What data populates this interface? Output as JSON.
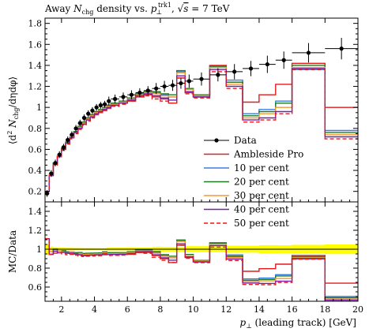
{
  "colors": {
    "data": "#000000",
    "ambleside_pro": "#e41a1c",
    "per_cent_10": "#3a7de0",
    "per_cent_20": "#1e7a1e",
    "per_cent_30": "#f39a36",
    "per_cent_40": "#7a1fa2",
    "per_cent_50": "#e41a1c",
    "band": "#ffff00"
  },
  "chart_data": [
    {
      "type": "line",
      "title": "Away N_chg density vs. p_⊥^trk1, √s = 7 TeV",
      "title_parts": {
        "prefix": "Away ",
        "N": "N",
        "chg": "chg",
        "mid": " density vs. ",
        "p": "p",
        "sub": "⊥",
        "sup": "trk1",
        "sep": ", ",
        "sqrt": "√",
        "s": "s",
        "eq": " = 7 TeV"
      },
      "ylabel": "⟨d²N_chg/dηdφ⟩",
      "ylabel_parts": {
        "open": "⟨d",
        "two": "2",
        "N": " N",
        "chg": "chg",
        "rest": "/dηdφ⟩"
      },
      "xlim": [
        1,
        20
      ],
      "ylim": [
        0.1,
        1.85
      ],
      "y_ticks": [
        0.2,
        0.4,
        0.6,
        0.8,
        1.0,
        1.2,
        1.4,
        1.6,
        1.8
      ],
      "y_tick_labels": [
        "0.2",
        "0.4",
        "0.6",
        "0.8",
        "1",
        "1.2",
        "1.4",
        "1.6",
        "1.8"
      ],
      "bin_edges": [
        1.0,
        1.25,
        1.5,
        1.75,
        2.0,
        2.25,
        2.5,
        2.75,
        3.0,
        3.25,
        3.5,
        3.75,
        4.0,
        4.25,
        4.5,
        4.75,
        5.0,
        5.5,
        6.0,
        6.5,
        7.0,
        7.5,
        8.0,
        8.5,
        9.0,
        9.5,
        10.0,
        11.0,
        12.0,
        13.0,
        14.0,
        15.0,
        16.0,
        18.0,
        20.0
      ],
      "data": {
        "x": [
          1.125,
          1.375,
          1.625,
          1.875,
          2.125,
          2.375,
          2.625,
          2.875,
          3.125,
          3.375,
          3.625,
          3.875,
          4.125,
          4.375,
          4.625,
          4.875,
          5.25,
          5.75,
          6.25,
          6.75,
          7.25,
          7.75,
          8.25,
          8.75,
          9.25,
          9.75,
          10.5,
          11.5,
          12.5,
          13.5,
          14.5,
          15.5,
          17.0,
          19.0
        ],
        "y": [
          0.18,
          0.37,
          0.47,
          0.55,
          0.62,
          0.69,
          0.74,
          0.8,
          0.85,
          0.9,
          0.94,
          0.97,
          1.0,
          1.02,
          1.03,
          1.06,
          1.08,
          1.1,
          1.12,
          1.14,
          1.16,
          1.18,
          1.2,
          1.21,
          1.23,
          1.25,
          1.27,
          1.31,
          1.34,
          1.37,
          1.41,
          1.45,
          1.52,
          1.56
        ],
        "yerr": [
          0.01,
          0.01,
          0.01,
          0.01,
          0.01,
          0.01,
          0.01,
          0.01,
          0.01,
          0.01,
          0.01,
          0.01,
          0.01,
          0.01,
          0.01,
          0.02,
          0.02,
          0.02,
          0.02,
          0.02,
          0.02,
          0.03,
          0.03,
          0.03,
          0.03,
          0.04,
          0.04,
          0.04,
          0.05,
          0.05,
          0.06,
          0.06,
          0.07,
          0.08
        ]
      },
      "series": [
        {
          "name": "Ambleside Pro",
          "values": [
            0.2,
            0.35,
            0.46,
            0.53,
            0.6,
            0.66,
            0.71,
            0.76,
            0.8,
            0.84,
            0.88,
            0.91,
            0.94,
            0.96,
            0.98,
            1.0,
            1.02,
            1.04,
            1.06,
            1.1,
            1.12,
            1.1,
            1.08,
            1.04,
            1.28,
            1.14,
            1.1,
            1.4,
            1.24,
            1.05,
            1.12,
            1.22,
            1.42,
            1.0
          ]
        },
        {
          "name": "10 per cent",
          "values": [
            0.2,
            0.36,
            0.47,
            0.54,
            0.61,
            0.67,
            0.72,
            0.77,
            0.81,
            0.85,
            0.89,
            0.92,
            0.95,
            0.97,
            1.0,
            1.02,
            1.04,
            1.06,
            1.08,
            1.13,
            1.15,
            1.14,
            1.12,
            1.1,
            1.34,
            1.18,
            1.1,
            1.38,
            1.26,
            0.94,
            0.98,
            1.06,
            1.36,
            0.78
          ]
        },
        {
          "name": "20 per cent",
          "values": [
            0.2,
            0.36,
            0.47,
            0.54,
            0.61,
            0.67,
            0.72,
            0.77,
            0.82,
            0.86,
            0.9,
            0.93,
            0.96,
            0.98,
            1.0,
            1.02,
            1.04,
            1.06,
            1.09,
            1.13,
            1.15,
            1.15,
            1.13,
            1.12,
            1.35,
            1.18,
            1.12,
            1.39,
            1.24,
            0.92,
            0.96,
            1.04,
            1.4,
            0.76
          ]
        },
        {
          "name": "30 per cent",
          "values": [
            0.2,
            0.36,
            0.46,
            0.54,
            0.6,
            0.66,
            0.72,
            0.76,
            0.81,
            0.85,
            0.89,
            0.92,
            0.95,
            0.97,
            0.99,
            1.01,
            1.03,
            1.05,
            1.08,
            1.12,
            1.14,
            1.13,
            1.11,
            1.1,
            1.33,
            1.17,
            1.11,
            1.38,
            1.22,
            0.9,
            0.94,
            1.0,
            1.38,
            0.74
          ]
        },
        {
          "name": "40 per cent",
          "values": [
            0.2,
            0.35,
            0.46,
            0.53,
            0.6,
            0.66,
            0.71,
            0.76,
            0.8,
            0.84,
            0.88,
            0.91,
            0.94,
            0.96,
            0.98,
            1.0,
            1.02,
            1.04,
            1.07,
            1.11,
            1.13,
            1.11,
            1.09,
            1.07,
            1.3,
            1.15,
            1.1,
            1.36,
            1.2,
            0.88,
            0.9,
            0.96,
            1.37,
            0.72
          ]
        },
        {
          "name": "50 per cent",
          "values": [
            0.2,
            0.35,
            0.45,
            0.53,
            0.59,
            0.65,
            0.7,
            0.75,
            0.79,
            0.83,
            0.87,
            0.9,
            0.93,
            0.95,
            0.97,
            0.99,
            1.01,
            1.03,
            1.06,
            1.1,
            1.11,
            1.08,
            1.06,
            1.04,
            1.28,
            1.13,
            1.09,
            1.34,
            1.18,
            0.86,
            0.88,
            0.94,
            1.36,
            0.7
          ]
        }
      ],
      "legend": {
        "placement": "center-right",
        "entries": [
          "Data",
          "Ambleside Pro",
          "10 per cent",
          "20 per cent",
          "30 per cent",
          "40 per cent",
          "50 per cent"
        ]
      }
    },
    {
      "type": "line",
      "ylabel": "MC/Data",
      "xlabel": "p_⊥ (leading track) [GeV]",
      "xlabel_parts": {
        "p": "p",
        "sub": "⊥",
        "rest": " (leading track) [GeV]"
      },
      "xlim": [
        1,
        20
      ],
      "ylim": [
        0.45,
        1.5
      ],
      "y_ticks": [
        0.6,
        0.8,
        1.0,
        1.2,
        1.4
      ],
      "y_tick_labels": [
        "0.6",
        "0.8",
        "1",
        "1.2",
        "1.4"
      ],
      "x_ticks": [
        2,
        4,
        6,
        8,
        10,
        12,
        14,
        16,
        18,
        20
      ],
      "x_tick_labels": [
        "2",
        "4",
        "6",
        "8",
        "10",
        "12",
        "14",
        "16",
        "18",
        "20"
      ],
      "band": "data uncertainty around 1",
      "series_note": "ratio of each MC series to Data, same bins"
    }
  ]
}
